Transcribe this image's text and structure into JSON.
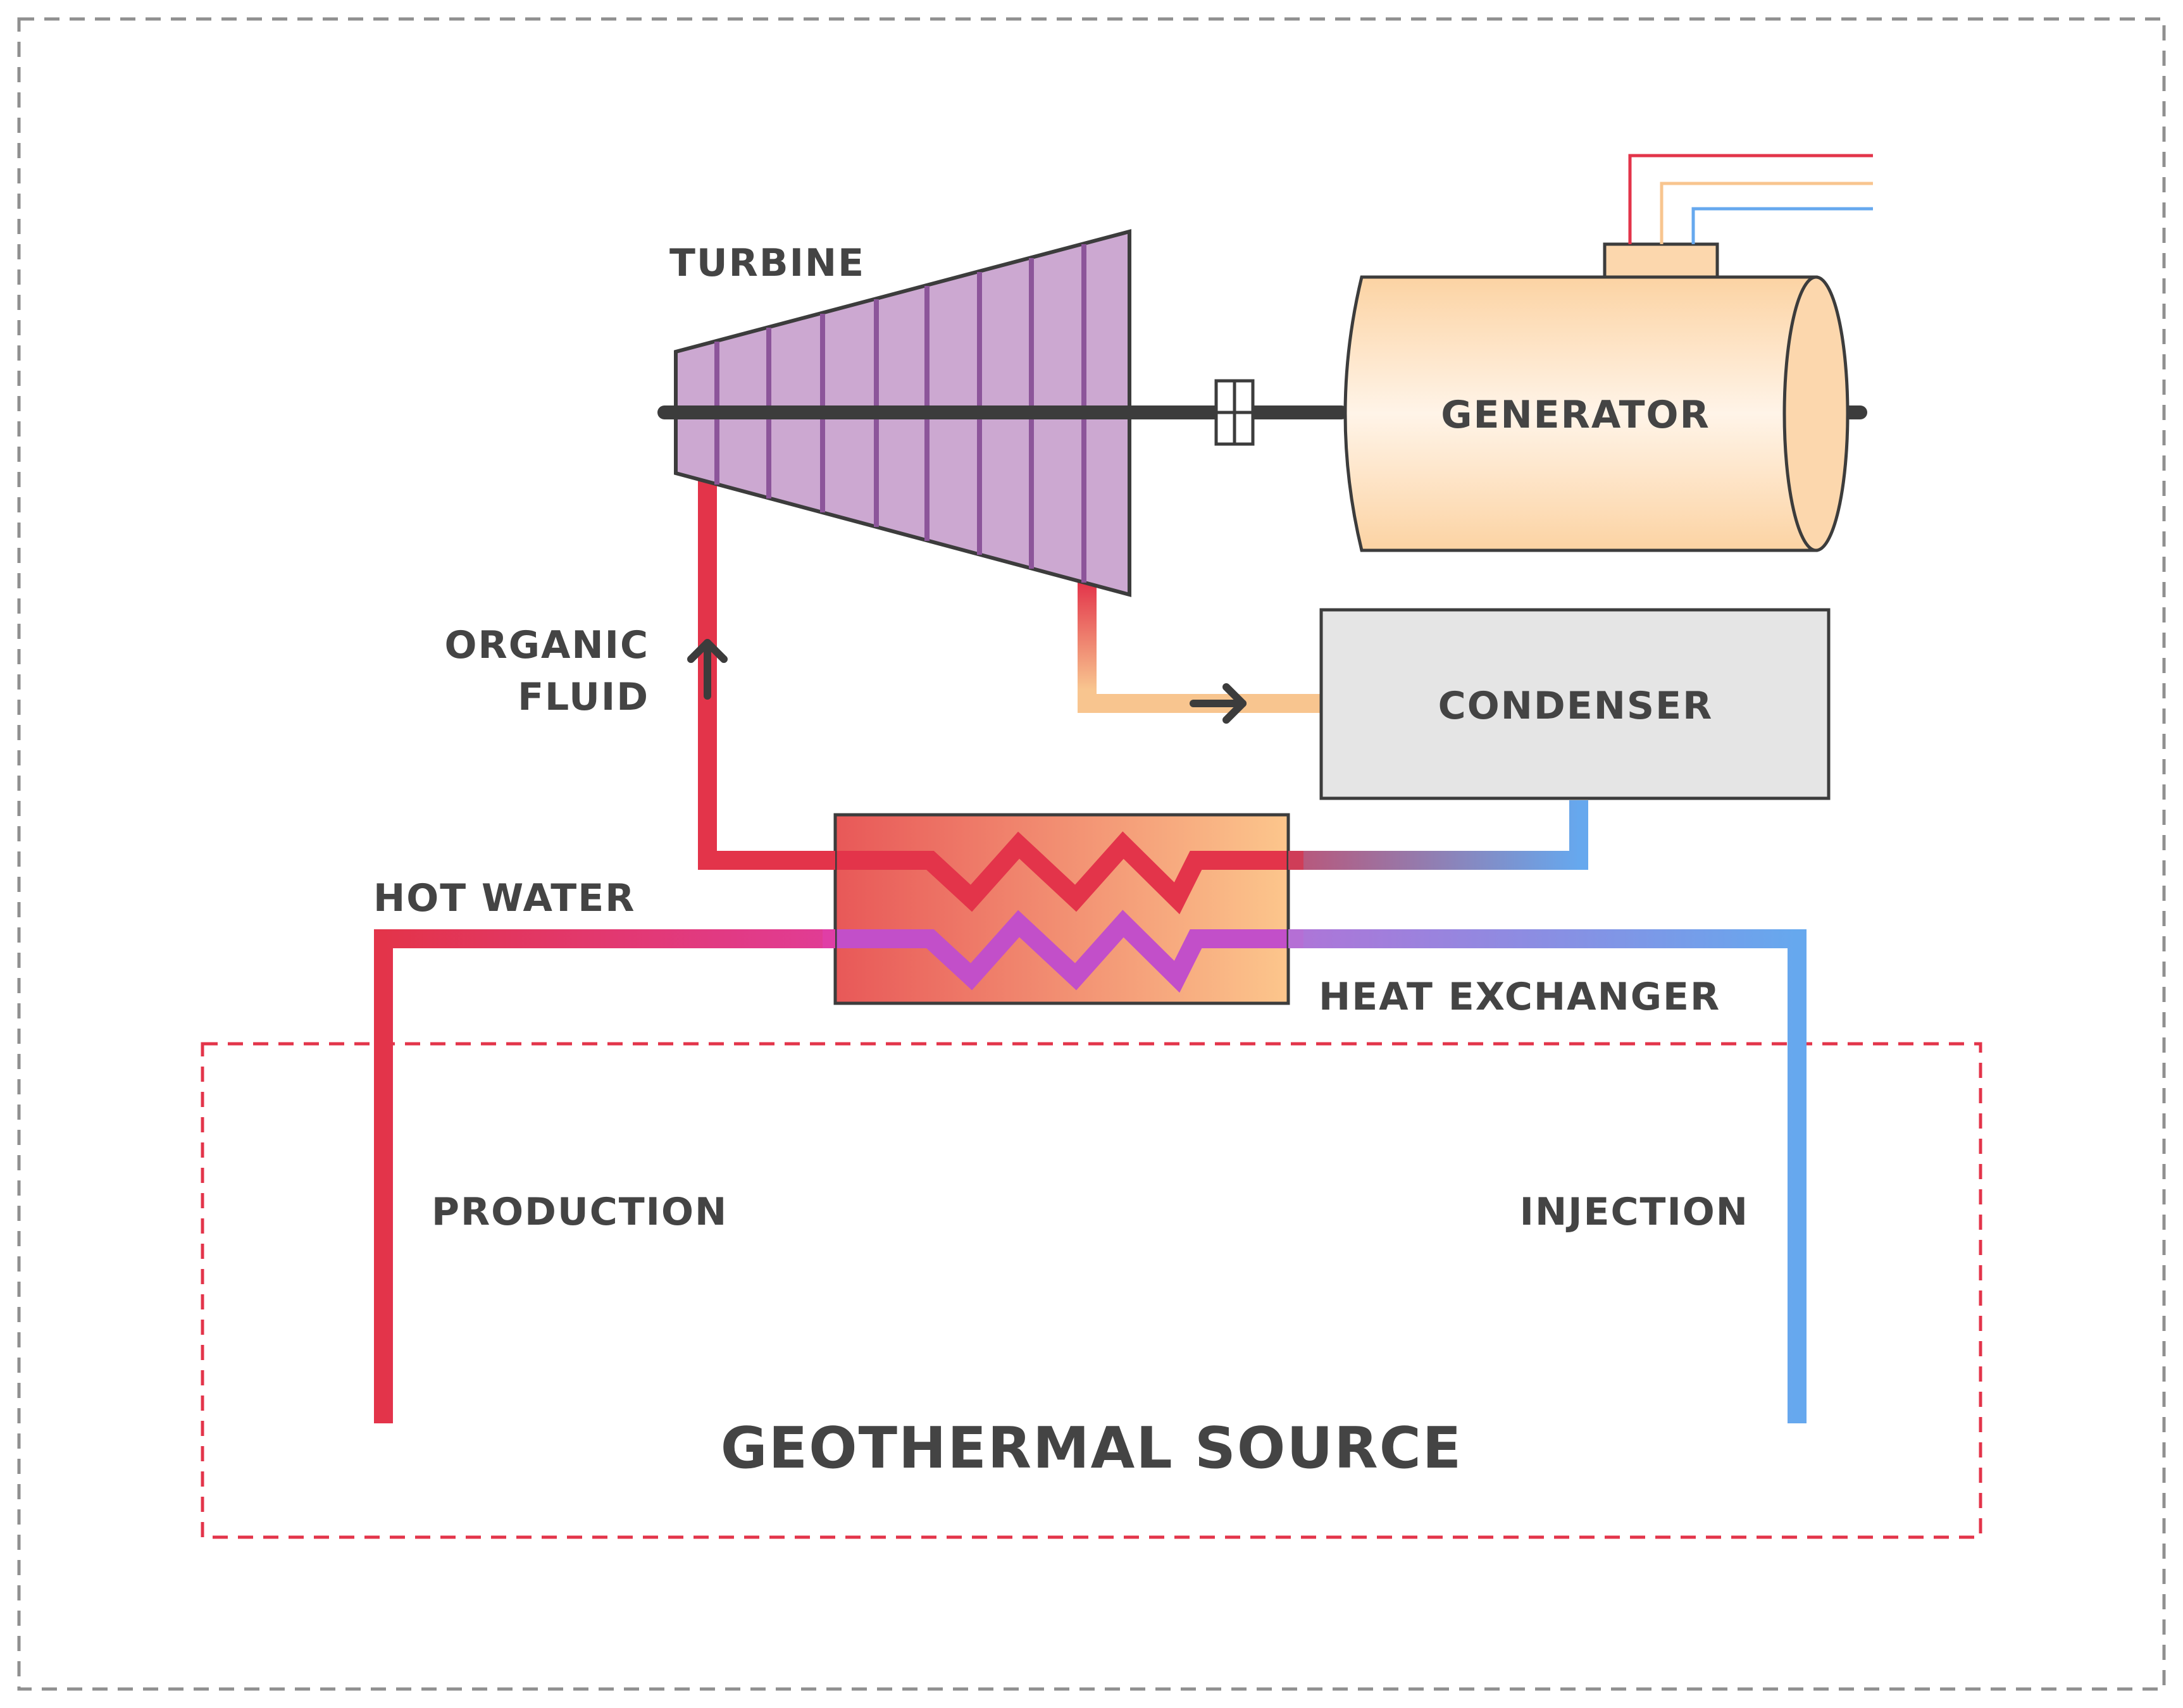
{
  "labels": {
    "turbine": "TURBINE",
    "generator": "GENERATOR",
    "organic_fluid_line1": "ORGANIC",
    "organic_fluid_line2": "FLUID",
    "condenser": "CONDENSER",
    "hot_water": "HOT WATER",
    "heat_exchanger": "HEAT EXCHANGER",
    "production": "PRODUCTION",
    "injection": "INJECTION",
    "geothermal_source": "GEOTHERMAL SOURCE"
  },
  "colors": {
    "hot": "#e3344a",
    "warm": "#f8c58f",
    "cold": "#66a8ee",
    "magenta": "#e03ea6",
    "purple": "#bd6ad3",
    "turbine_fill": "#cca8d1",
    "turbine_blade": "#8c559a",
    "generator_fill": "#fcd7ad",
    "condenser_fill": "#e5e5e5",
    "outline": "#3c3c3c",
    "border_dash": "#8f8f8f",
    "source_dash": "#e3344a"
  }
}
